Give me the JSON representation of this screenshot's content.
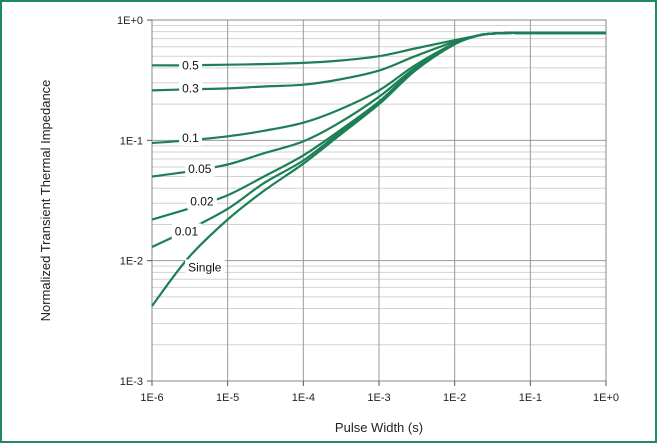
{
  "chart_data": {
    "type": "line",
    "x_scale": "log",
    "y_scale": "log",
    "xlabel": "Pulse Width (s)",
    "ylabel": "Normalized Transient Thermal Impedance",
    "xlim": [
      1e-06,
      1
    ],
    "ylim": [
      0.001,
      1
    ],
    "x_tick_values": [
      1e-06,
      1e-05,
      0.0001,
      0.001,
      0.01,
      0.1,
      1
    ],
    "x_tick_labels": [
      "1E-6",
      "1E-5",
      "1E-4",
      "1E-3",
      "1E-2",
      "1E-1",
      "1E+0"
    ],
    "y_tick_values": [
      0.001,
      0.01,
      0.1,
      1
    ],
    "y_tick_labels": [
      "1E-3",
      "1E-2",
      "1E-1",
      "1E+0"
    ],
    "grid": true,
    "line_color": "#1d7f55",
    "frame_color": "#1d8a63",
    "x": [
      1e-06,
      3e-06,
      1e-05,
      3e-05,
      0.0001,
      0.0003,
      0.001,
      0.003,
      0.01,
      0.02,
      0.03,
      0.05,
      0.1,
      1
    ],
    "series": [
      {
        "name": "0.5",
        "label_x": 2.5e-06,
        "label_y": 0.42,
        "values": [
          0.42,
          0.42,
          0.425,
          0.43,
          0.44,
          0.46,
          0.5,
          0.58,
          0.68,
          0.74,
          0.77,
          0.78,
          0.78,
          0.78
        ]
      },
      {
        "name": "0.3",
        "label_x": 2.5e-06,
        "label_y": 0.27,
        "values": [
          0.26,
          0.265,
          0.27,
          0.28,
          0.29,
          0.32,
          0.38,
          0.5,
          0.66,
          0.74,
          0.77,
          0.78,
          0.78,
          0.78
        ]
      },
      {
        "name": "0.1",
        "label_x": 2.5e-06,
        "label_y": 0.105,
        "values": [
          0.095,
          0.1,
          0.108,
          0.12,
          0.14,
          0.18,
          0.26,
          0.42,
          0.64,
          0.74,
          0.77,
          0.78,
          0.78,
          0.78
        ]
      },
      {
        "name": "0.05",
        "label_x": 3e-06,
        "label_y": 0.058,
        "values": [
          0.05,
          0.055,
          0.063,
          0.078,
          0.098,
          0.14,
          0.23,
          0.4,
          0.63,
          0.74,
          0.77,
          0.78,
          0.78,
          0.78
        ]
      },
      {
        "name": "0.02",
        "label_x": 3.2e-06,
        "label_y": 0.031,
        "values": [
          0.022,
          0.027,
          0.035,
          0.05,
          0.075,
          0.12,
          0.21,
          0.39,
          0.63,
          0.74,
          0.77,
          0.78,
          0.78,
          0.78
        ]
      },
      {
        "name": "0.01",
        "label_x": 2e-06,
        "label_y": 0.0175,
        "values": [
          0.013,
          0.018,
          0.027,
          0.044,
          0.068,
          0.115,
          0.2,
          0.38,
          0.63,
          0.74,
          0.77,
          0.78,
          0.78,
          0.78
        ]
      },
      {
        "name": "Single",
        "label_x": 3e-06,
        "label_y": 0.0088,
        "values": [
          0.0042,
          0.0105,
          0.022,
          0.038,
          0.064,
          0.11,
          0.2,
          0.38,
          0.63,
          0.74,
          0.77,
          0.78,
          0.78,
          0.78
        ]
      }
    ]
  }
}
